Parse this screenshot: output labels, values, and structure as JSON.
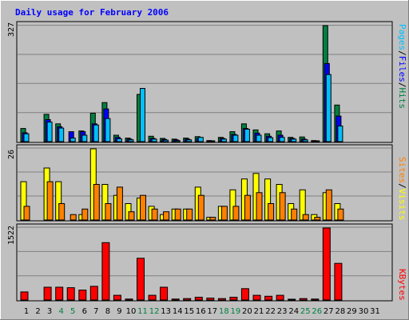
{
  "chart_data": {
    "type": "bar",
    "title": "Daily usage for February 2006",
    "days": [
      "1",
      "2",
      "3",
      "4",
      "5",
      "6",
      "7",
      "8",
      "9",
      "10",
      "11",
      "12",
      "13",
      "14",
      "15",
      "16",
      "17",
      "18",
      "19",
      "20",
      "21",
      "22",
      "23",
      "24",
      "25",
      "26",
      "27",
      "28",
      "29",
      "30",
      "31"
    ],
    "weekend_days": [
      "4",
      "5",
      "11",
      "12",
      "18",
      "19",
      "25",
      "26"
    ],
    "panels": {
      "hits_files_pages": {
        "max_label": "327",
        "series": [
          {
            "name": "Hits",
            "color": "#008040",
            "values": [
              37,
              0,
              77,
              50,
              0,
              30,
              80,
              110,
              18,
              10,
              133,
              15,
              9,
              7,
              10,
              14,
              3,
              12,
              28,
              50,
              33,
              22,
              30,
              12,
              13,
              3,
              327,
              103,
              0,
              0,
              0
            ]
          },
          {
            "name": "Files",
            "color": "#0000ff",
            "values": [
              25,
              0,
              62,
              42,
              28,
              28,
              50,
              92,
              12,
              7,
              0,
              9,
              6,
              5,
              7,
              9,
              2,
              9,
              20,
              37,
              24,
              15,
              18,
              9,
              7,
              1,
              220,
              72,
              0,
              0,
              0
            ]
          },
          {
            "name": "Pages",
            "color": "#00c0ff",
            "values": [
              22,
              0,
              55,
              38,
              10,
              18,
              47,
              65,
              8,
              5,
              150,
              7,
              4,
              3,
              5,
              12,
              1,
              7,
              18,
              35,
              18,
              11,
              12,
              7,
              5,
              1,
              189,
              44,
              0,
              0,
              0
            ]
          }
        ]
      },
      "visits_sites": {
        "max_label": "26",
        "series": [
          {
            "name": "Visits",
            "color": "#ffff00",
            "values": [
              14,
              0,
              19,
              14,
              0,
              2,
              26,
              13,
              9,
              6,
              8,
              5,
              2,
              4,
              4,
              12,
              1,
              5,
              11,
              15,
              17,
              15,
              13,
              6,
              11,
              2,
              10,
              6,
              0,
              0,
              0
            ]
          },
          {
            "name": "Sites",
            "color": "#ff8000",
            "values": [
              5,
              0,
              14,
              6,
              2,
              4,
              13,
              6,
              12,
              3,
              9,
              4,
              3,
              4,
              4,
              9,
              1,
              5,
              5,
              9,
              10,
              6,
              10,
              4,
              2,
              1,
              11,
              4,
              0,
              0,
              0
            ]
          }
        ]
      },
      "kbytes": {
        "max_label": "1522",
        "series": [
          {
            "name": "KBytes",
            "color": "#ff0000",
            "values": [
              170,
              0,
              270,
              270,
              260,
              210,
              290,
              1212,
              100,
              20,
              882,
              100,
              270,
              20,
              30,
              60,
              40,
              30,
              60,
              240,
              100,
              80,
              100,
              10,
              30,
              20,
              1522,
              775,
              0,
              0,
              0
            ]
          }
        ]
      }
    }
  }
}
